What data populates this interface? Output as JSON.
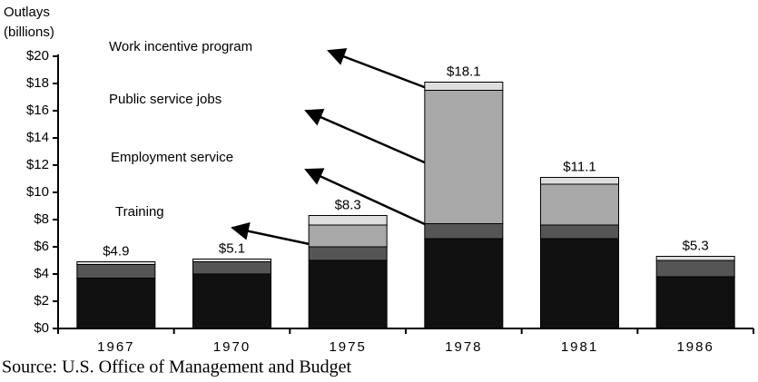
{
  "chart_data": {
    "type": "stacked_bar",
    "y_label": [
      "Outlays",
      "(billions)"
    ],
    "source": "Source: U.S. Office of Management and Budget",
    "categories": [
      "1967",
      "1970",
      "1975",
      "1978",
      "1981",
      "1986"
    ],
    "series": [
      {
        "name": "Training",
        "color": "#111111",
        "values": [
          3.7,
          4.0,
          5.0,
          6.6,
          6.6,
          3.8
        ]
      },
      {
        "name": "Employment service",
        "color": "#555555",
        "values": [
          1.0,
          0.9,
          1.0,
          1.1,
          1.0,
          1.2
        ]
      },
      {
        "name": "Public service jobs",
        "color": "#a8a8a8",
        "values": [
          0,
          0,
          1.6,
          9.8,
          3.0,
          0
        ]
      },
      {
        "name": "Work incentive program",
        "color": "#dedede",
        "values": [
          0.2,
          0.2,
          0.7,
          0.6,
          0.5,
          0.3
        ]
      }
    ],
    "value_labels": [
      "$4.9",
      "$5.1",
      "$8.3",
      "$18.1",
      "$11.1",
      "$5.3"
    ],
    "ylim": [
      0,
      20
    ],
    "yticks": [
      {
        "value": 0,
        "label": "$0"
      },
      {
        "value": 2,
        "label": "$2"
      },
      {
        "value": 4,
        "label": "$4"
      },
      {
        "value": 6,
        "label": "$6"
      },
      {
        "value": 8,
        "label": "$8"
      },
      {
        "value": 10,
        "label": "$10"
      },
      {
        "value": 12,
        "label": "$12"
      },
      {
        "value": 14,
        "label": "$14"
      },
      {
        "value": 16,
        "label": "$16"
      },
      {
        "value": 18,
        "label": "$18"
      },
      {
        "value": 20,
        "label": "$20"
      }
    ]
  }
}
